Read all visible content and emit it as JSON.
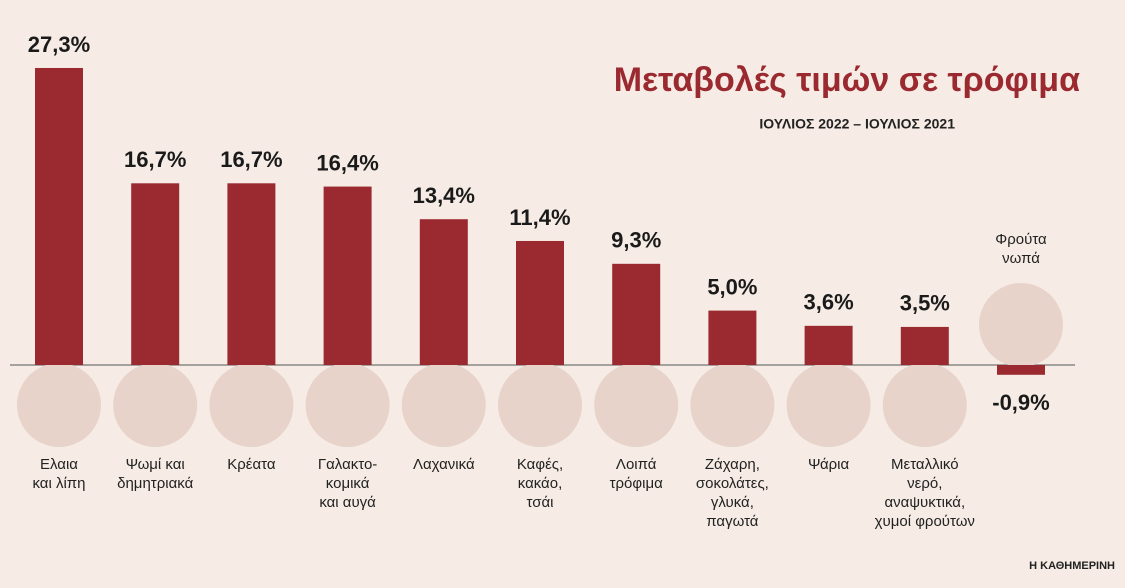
{
  "chart_data": {
    "type": "bar",
    "title": "Μεταβολές τιμών σε τρόφιμα",
    "subtitle": "ΙΟΥΛΙΟΣ 2022 – ΙΟΥΛΙΟΣ 2021",
    "source": "Η ΚΑΘΗΜΕΡΙΝΗ",
    "categories": [
      "Ελαια\nκαι λίπη",
      "Ψωμί και\nδημητριακά",
      "Κρέατα",
      "Γαλακτο-\nκομικά\nκαι αυγά",
      "Λαχανικά",
      "Καφές,\nκακάο,\nτσάι",
      "Λοιπά\nτρόφιμα",
      "Ζάχαρη,\nσοκολάτες,\nγλυκά,\nπαγωτά",
      "Ψάρια",
      "Μεταλλικό\nνερό,\nαναψυκτικά,\nχυμοί φρούτων",
      "Φρούτα\nνωπά"
    ],
    "values": [
      27.3,
      16.7,
      16.7,
      16.4,
      13.4,
      11.4,
      9.3,
      5.0,
      3.6,
      3.5,
      -0.9
    ],
    "value_labels": [
      "27,3%",
      "16,7%",
      "16,7%",
      "16,4%",
      "13,4%",
      "11,4%",
      "9,3%",
      "5,0%",
      "3,6%",
      "3,5%",
      "-0,9%"
    ],
    "color": "#9b2a30"
  }
}
